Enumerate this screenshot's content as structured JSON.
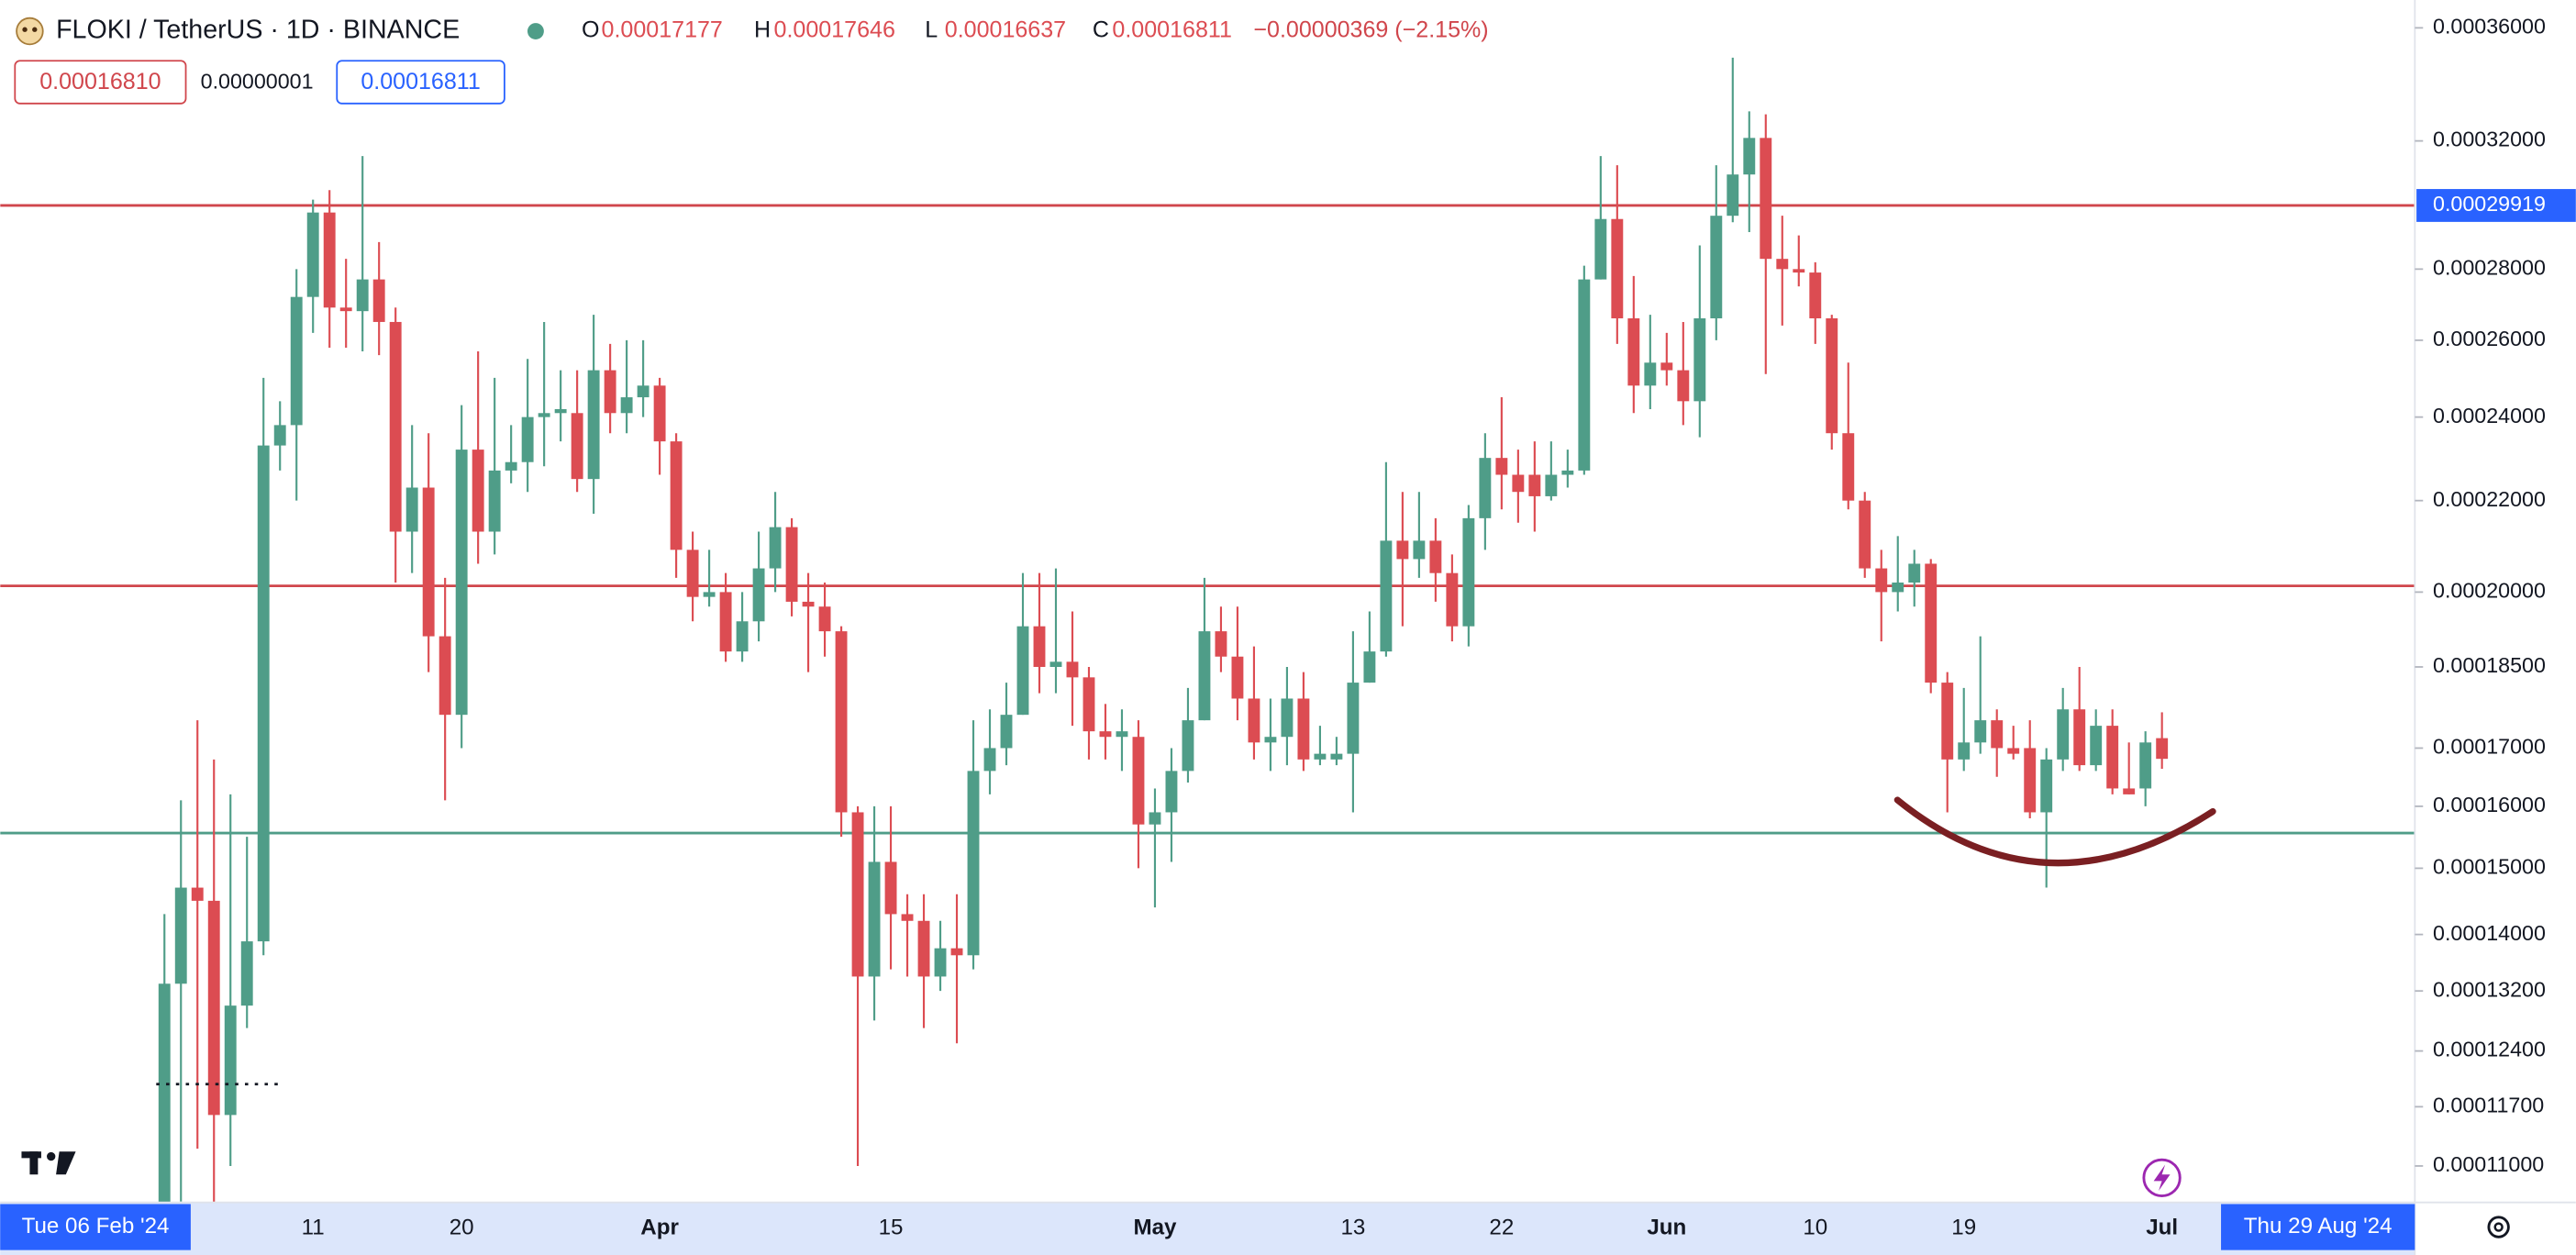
{
  "chart_data": {
    "type": "candlestick",
    "title": "FLOKI / TetherUS · 1D · BINANCE",
    "ohlc_keys": [
      "O",
      "H",
      "L",
      "C"
    ],
    "change": "−0.00000369 (−2.15%)",
    "order_boxes": [
      "0.00016810",
      "0.00000001",
      "0.00016811"
    ],
    "x_edge_labels": [
      "Tue 06 Feb '24",
      "Thu 29 Aug '24"
    ],
    "log_scale": true,
    "grid": false,
    "up_color": "#4f9d88",
    "down_color": "#dc4c52",
    "ylim": [
      0.0001059,
      0.0003706
    ],
    "yticks": [
      {
        "value": 0.00036,
        "label": "0.00036000"
      },
      {
        "value": 0.00032,
        "label": "0.00032000"
      },
      {
        "value": 0.00028,
        "label": "0.00028000"
      },
      {
        "value": 0.00026,
        "label": "0.00026000"
      },
      {
        "value": 0.00024,
        "label": "0.00024000"
      },
      {
        "value": 0.00022,
        "label": "0.00022000"
      },
      {
        "value": 0.0002,
        "label": "0.00020000"
      },
      {
        "value": 0.000185,
        "label": "0.00018500"
      },
      {
        "value": 0.00017,
        "label": "0.00017000"
      },
      {
        "value": 0.00016,
        "label": "0.00016000"
      },
      {
        "value": 0.00015,
        "label": "0.00015000"
      },
      {
        "value": 0.00014,
        "label": "0.00014000"
      },
      {
        "value": 0.000132,
        "label": "0.00013200"
      },
      {
        "value": 0.000124,
        "label": "0.00012400"
      },
      {
        "value": 0.000117,
        "label": "0.00011700"
      },
      {
        "value": 0.00011,
        "label": "0.00011000"
      }
    ],
    "price_lines": [
      {
        "value": 0.00029919,
        "color": "#d0464c",
        "labeled": true
      },
      {
        "value": 0.0002013,
        "color": "#d0464c",
        "labeled": false
      },
      {
        "value": 0.0001556,
        "color": "#4f9d88",
        "labeled": false
      }
    ],
    "categories": [
      null,
      null,
      null,
      null,
      null,
      null,
      null,
      null,
      null,
      "11",
      null,
      null,
      null,
      null,
      null,
      null,
      null,
      null,
      "20",
      null,
      null,
      null,
      null,
      null,
      null,
      null,
      null,
      null,
      null,
      null,
      "Apr",
      null,
      null,
      null,
      null,
      null,
      null,
      null,
      null,
      null,
      null,
      null,
      null,
      null,
      "15",
      null,
      null,
      null,
      null,
      null,
      null,
      null,
      null,
      null,
      null,
      null,
      null,
      null,
      null,
      null,
      "May",
      null,
      null,
      null,
      null,
      null,
      null,
      null,
      null,
      null,
      null,
      null,
      "13",
      null,
      null,
      null,
      null,
      null,
      null,
      null,
      null,
      "22",
      null,
      null,
      null,
      null,
      null,
      null,
      null,
      null,
      null,
      "Jun",
      null,
      null,
      null,
      null,
      null,
      null,
      null,
      null,
      "10",
      null,
      null,
      null,
      null,
      null,
      null,
      null,
      null,
      "19",
      null,
      null,
      null,
      null,
      null,
      null,
      null,
      null,
      null,
      null,
      null,
      "Jul"
    ],
    "series": {
      "open": [
        0.000104,
        0.000133,
        0.000147,
        0.000145,
        0.000116,
        0.00013,
        0.000139,
        0.000233,
        0.000238,
        0.000272,
        0.000297,
        0.000269,
        0.000268,
        0.000277,
        0.000265,
        0.000213,
        0.000223,
        0.000191,
        0.000176,
        0.000232,
        0.000213,
        0.000227,
        0.000229,
        0.00024,
        0.000241,
        0.000241,
        0.000225,
        0.000252,
        0.000241,
        0.000245,
        0.000248,
        0.000234,
        0.000209,
        0.000199,
        0.0002,
        0.000188,
        0.000194,
        0.000205,
        0.000214,
        0.000198,
        0.000197,
        0.000192,
        0.000159,
        0.000134,
        0.000151,
        0.000143,
        0.000142,
        0.000134,
        0.000138,
        0.000137,
        0.000166,
        0.00017,
        0.000176,
        0.000193,
        0.000185,
        0.000186,
        0.000183,
        0.000173,
        0.000172,
        0.000172,
        0.000157,
        0.000159,
        0.000166,
        0.000175,
        0.000192,
        0.000187,
        0.000179,
        0.000171,
        0.000172,
        0.000179,
        0.000168,
        0.000168,
        0.000169,
        0.000182,
        0.000188,
        0.000211,
        0.000207,
        0.000211,
        0.000204,
        0.000193,
        0.000216,
        0.00023,
        0.000226,
        0.000226,
        0.000221,
        0.000226,
        0.000227,
        0.000277,
        0.000295,
        0.000266,
        0.000248,
        0.000254,
        0.000252,
        0.000244,
        0.000266,
        0.000296,
        0.000309,
        0.000321,
        0.000283,
        0.00028,
        0.000279,
        0.000266,
        0.000236,
        0.00022,
        0.000205,
        0.0002,
        0.000202,
        0.000206,
        0.000182,
        0.000168,
        0.000171,
        0.000175,
        0.00017,
        0.00017,
        0.000159,
        0.000168,
        0.000177,
        0.000167,
        0.000174,
        0.000163,
        0.000163,
        0.00017177
      ],
      "high": [
        0.000143,
        0.000161,
        0.000175,
        0.000168,
        0.000162,
        0.000155,
        0.00025,
        0.000244,
        0.00028,
        0.000301,
        0.000304,
        0.000283,
        0.000315,
        0.000288,
        0.000269,
        0.000238,
        0.000236,
        0.000203,
        0.000243,
        0.000257,
        0.00025,
        0.000238,
        0.000255,
        0.000265,
        0.000252,
        0.000252,
        0.000267,
        0.000259,
        0.00026,
        0.00026,
        0.00025,
        0.000236,
        0.000213,
        0.000209,
        0.000204,
        0.0002,
        0.000213,
        0.000222,
        0.000216,
        0.000204,
        0.000202,
        0.000193,
        0.00016,
        0.00016,
        0.00016,
        0.000146,
        0.000146,
        0.000142,
        0.000146,
        0.000175,
        0.000177,
        0.000182,
        0.000204,
        0.000204,
        0.000205,
        0.000196,
        0.000185,
        0.000178,
        0.000177,
        0.000175,
        0.000163,
        0.00017,
        0.000181,
        0.000203,
        0.000197,
        0.000197,
        0.000189,
        0.000179,
        0.000185,
        0.000184,
        0.000174,
        0.000172,
        0.000192,
        0.000196,
        0.000229,
        0.000222,
        0.000222,
        0.000216,
        0.000208,
        0.000219,
        0.000236,
        0.000245,
        0.000232,
        0.000234,
        0.000234,
        0.000232,
        0.000281,
        0.000315,
        0.000312,
        0.000278,
        0.000267,
        0.000262,
        0.000265,
        0.000287,
        0.000312,
        0.000349,
        0.00033,
        0.000329,
        0.000296,
        0.00029,
        0.000282,
        0.000267,
        0.000254,
        0.000222,
        0.000209,
        0.000212,
        0.000209,
        0.000207,
        0.000184,
        0.000181,
        0.000191,
        0.000177,
        0.000174,
        0.000175,
        0.00017,
        0.000181,
        0.000185,
        0.000177,
        0.000177,
        0.000171,
        0.000173,
        0.00017646
      ],
      "low": [
        0.0001,
        0.000106,
        0.000112,
        0.000105,
        0.00011,
        0.000127,
        0.000137,
        0.000227,
        0.00022,
        0.000262,
        0.000258,
        0.000258,
        0.000257,
        0.000256,
        0.000202,
        0.000204,
        0.000184,
        0.000161,
        0.00017,
        0.000206,
        0.000208,
        0.000224,
        0.000222,
        0.000228,
        0.000234,
        0.000222,
        0.000217,
        0.000236,
        0.000236,
        0.00024,
        0.000226,
        0.000203,
        0.000194,
        0.000197,
        0.000186,
        0.000186,
        0.00019,
        0.0002,
        0.000195,
        0.000184,
        0.000187,
        0.000155,
        0.00011,
        0.000128,
        0.000135,
        0.000134,
        0.000127,
        0.000132,
        0.000125,
        0.000135,
        0.000162,
        0.000167,
        0.000176,
        0.00018,
        0.00018,
        0.000174,
        0.000168,
        0.000168,
        0.000166,
        0.00015,
        0.000144,
        0.000151,
        0.000164,
        0.000175,
        0.000184,
        0.000175,
        0.000168,
        0.000166,
        0.000167,
        0.000166,
        0.000167,
        0.000167,
        0.000159,
        0.000182,
        0.000187,
        0.000193,
        0.000203,
        0.000198,
        0.00019,
        0.000189,
        0.000209,
        0.000218,
        0.000215,
        0.000213,
        0.00022,
        0.000223,
        0.000226,
        0.000277,
        0.000259,
        0.000241,
        0.000242,
        0.000248,
        0.000238,
        0.000235,
        0.00026,
        0.000294,
        0.000291,
        0.000251,
        0.000264,
        0.000275,
        0.000259,
        0.000232,
        0.000218,
        0.000203,
        0.00019,
        0.000196,
        0.000197,
        0.00018,
        0.000159,
        0.000166,
        0.000169,
        0.000165,
        0.000168,
        0.000158,
        0.000147,
        0.000166,
        0.000166,
        0.000166,
        0.000162,
        0.000162,
        0.00016,
        0.00016637
      ],
      "close": [
        0.000133,
        0.000147,
        0.000145,
        0.000116,
        0.00013,
        0.000139,
        0.000233,
        0.000238,
        0.000272,
        0.000297,
        0.000269,
        0.000268,
        0.000277,
        0.000265,
        0.000213,
        0.000223,
        0.000191,
        0.000176,
        0.000232,
        0.000213,
        0.000227,
        0.000229,
        0.00024,
        0.000241,
        0.000242,
        0.000225,
        0.000252,
        0.000241,
        0.000245,
        0.000248,
        0.000234,
        0.000209,
        0.000199,
        0.0002,
        0.000188,
        0.000194,
        0.000205,
        0.000214,
        0.000198,
        0.000197,
        0.000192,
        0.000159,
        0.000134,
        0.000151,
        0.000143,
        0.000142,
        0.000134,
        0.000138,
        0.000137,
        0.000166,
        0.00017,
        0.000176,
        0.000193,
        0.000185,
        0.000186,
        0.000183,
        0.000173,
        0.000172,
        0.000173,
        0.000157,
        0.000159,
        0.000166,
        0.000175,
        0.000192,
        0.000187,
        0.000179,
        0.000171,
        0.000172,
        0.000179,
        0.000168,
        0.000169,
        0.000169,
        0.000182,
        0.000188,
        0.000211,
        0.000207,
        0.000211,
        0.000204,
        0.000193,
        0.000216,
        0.00023,
        0.000226,
        0.000222,
        0.000221,
        0.000226,
        0.000227,
        0.000277,
        0.000295,
        0.000266,
        0.000248,
        0.000254,
        0.000252,
        0.000244,
        0.000266,
        0.000296,
        0.000309,
        0.000321,
        0.000283,
        0.00028,
        0.000279,
        0.000266,
        0.000236,
        0.00022,
        0.000205,
        0.0002,
        0.000202,
        0.000206,
        0.000182,
        0.000168,
        0.000171,
        0.000175,
        0.00017,
        0.000169,
        0.000159,
        0.000168,
        0.000177,
        0.000167,
        0.000174,
        0.000163,
        0.000162,
        0.000171,
        0.00016811
      ]
    }
  }
}
